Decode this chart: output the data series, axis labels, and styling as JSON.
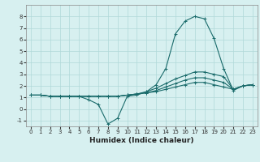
{
  "title": "",
  "xlabel": "Humidex (Indice chaleur)",
  "ylabel": "",
  "bg_color": "#d7f0f0",
  "grid_color": "#b0d8d8",
  "line_color": "#1a6b6b",
  "xlim": [
    -0.5,
    23.5
  ],
  "ylim": [
    -1.5,
    9.0
  ],
  "xticks": [
    0,
    1,
    2,
    3,
    4,
    5,
    6,
    7,
    8,
    9,
    10,
    11,
    12,
    13,
    14,
    15,
    16,
    17,
    18,
    19,
    20,
    21,
    22,
    23
  ],
  "yticks": [
    -1,
    0,
    1,
    2,
    3,
    4,
    5,
    6,
    7,
    8
  ],
  "series": [
    [
      1.2,
      1.2,
      1.1,
      1.1,
      1.1,
      1.1,
      0.8,
      0.4,
      -1.3,
      -0.8,
      1.1,
      1.2,
      1.5,
      2.1,
      3.5,
      6.5,
      7.6,
      8.0,
      7.8,
      6.1,
      3.5,
      1.6,
      2.0,
      2.1
    ],
    [
      1.2,
      1.2,
      1.1,
      1.1,
      1.1,
      1.1,
      1.1,
      1.1,
      1.1,
      1.1,
      1.2,
      1.3,
      1.5,
      1.8,
      2.2,
      2.6,
      2.9,
      3.2,
      3.2,
      3.0,
      2.8,
      1.7,
      2.0,
      2.1
    ],
    [
      1.2,
      1.2,
      1.1,
      1.1,
      1.1,
      1.1,
      1.1,
      1.1,
      1.1,
      1.1,
      1.2,
      1.3,
      1.4,
      1.6,
      1.9,
      2.2,
      2.5,
      2.7,
      2.7,
      2.5,
      2.3,
      1.7,
      2.0,
      2.1
    ],
    [
      1.2,
      1.2,
      1.1,
      1.1,
      1.1,
      1.1,
      1.1,
      1.1,
      1.1,
      1.1,
      1.2,
      1.3,
      1.4,
      1.5,
      1.7,
      1.9,
      2.1,
      2.3,
      2.3,
      2.1,
      1.9,
      1.7,
      2.0,
      2.1
    ]
  ]
}
